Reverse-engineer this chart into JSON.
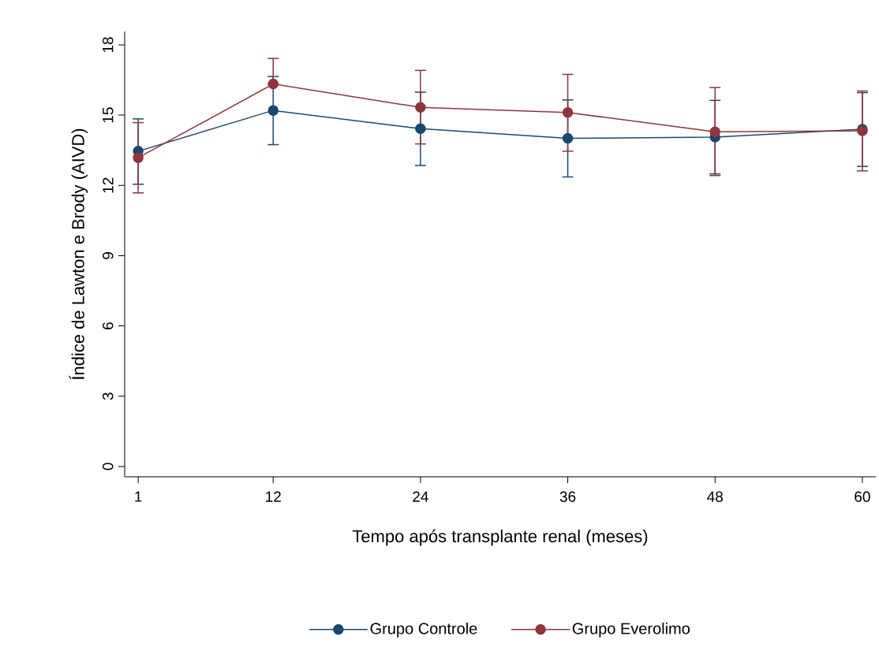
{
  "chart_data": {
    "type": "line",
    "xlabel": "Tempo após transplante renal (meses)",
    "ylabel": "Índice de Lawton e Brody (AIVD)",
    "x": [
      1,
      12,
      24,
      36,
      48,
      60
    ],
    "series": [
      {
        "name": "Grupo Controle",
        "color": "#1a476f",
        "values": [
          13.46,
          15.2,
          14.42,
          14.01,
          14.06,
          14.4
        ],
        "errors": [
          [
            12.05,
            14.84
          ],
          [
            13.74,
            16.65
          ],
          [
            12.85,
            15.98
          ],
          [
            12.36,
            15.65
          ],
          [
            12.49,
            15.63
          ],
          [
            12.81,
            15.96
          ]
        ]
      },
      {
        "name": "Grupo Everolimo",
        "color": "#90353b",
        "values": [
          13.18,
          16.33,
          15.33,
          15.11,
          14.29,
          14.33
        ],
        "errors": [
          [
            11.68,
            14.68
          ],
          [
            16.33,
            17.42
          ],
          [
            13.77,
            16.91
          ],
          [
            13.46,
            16.74
          ],
          [
            12.42,
            16.18
          ],
          [
            12.62,
            16.03
          ]
        ]
      }
    ],
    "xlim": [
      -0.1,
      61.1
    ],
    "ylim": [
      -0.44,
      18.57
    ],
    "xticks": [
      1,
      12,
      24,
      36,
      48,
      60
    ],
    "yticks": [
      0,
      3,
      6,
      9,
      12,
      15,
      18
    ],
    "grid": false,
    "legend": "bottom",
    "marker": "circle",
    "line_style": "solid"
  }
}
